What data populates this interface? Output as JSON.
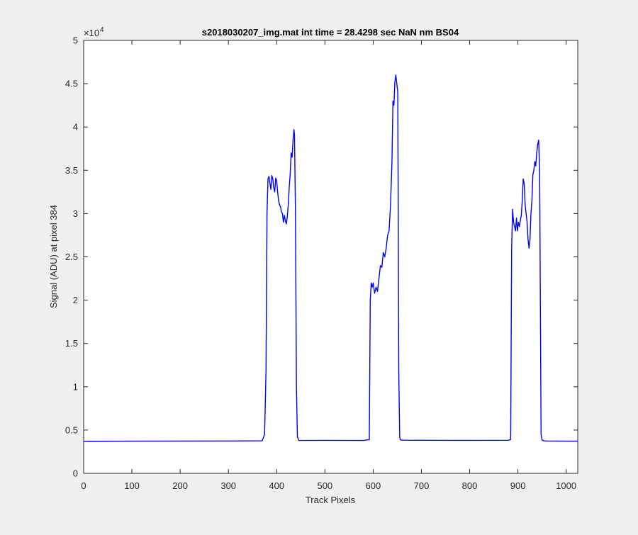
{
  "chart_data": {
    "type": "line",
    "title": "s2018030207_img.mat int time = 28.4298 sec  NaN nm BS04",
    "xlabel": "Track Pixels",
    "ylabel": "Signal (ADU) at pixel 384",
    "xlim": [
      0,
      1024
    ],
    "ylim": [
      0,
      50000
    ],
    "xticks": [
      "0",
      "100",
      "200",
      "300",
      "400",
      "500",
      "600",
      "700",
      "800",
      "900",
      "1000"
    ],
    "yticks": [
      "0",
      "0.5",
      "1",
      "1.5",
      "2",
      "2.5",
      "3",
      "3.5",
      "4",
      "4.5",
      "5"
    ],
    "y_exponent_base": "×10",
    "y_exponent_power": "4",
    "grid": false,
    "line_color": "#0000ff",
    "series": [
      {
        "x": [
          0,
          100,
          200,
          300,
          370,
          375,
          378,
          380,
          382,
          384,
          386,
          388,
          390,
          392,
          394,
          396,
          398,
          400,
          402,
          404,
          406,
          408,
          410,
          412,
          414,
          416,
          418,
          420,
          422,
          424,
          426,
          428,
          430,
          432,
          434,
          436,
          437,
          439,
          441,
          443,
          446,
          500,
          580,
          592,
          594,
          596,
          598,
          600,
          603,
          606,
          609,
          612,
          615,
          618,
          621,
          624,
          627,
          630,
          633,
          636,
          639,
          641,
          643,
          645,
          647,
          649,
          651,
          652,
          653,
          655,
          656,
          658,
          660,
          700,
          800,
          880,
          885,
          887,
          889,
          891,
          893,
          895,
          897,
          899,
          901,
          903,
          905,
          907,
          909,
          911,
          913,
          915,
          917,
          919,
          921,
          923,
          925,
          927,
          929,
          931,
          933,
          935,
          937,
          939,
          941,
          943,
          945,
          947,
          948,
          950,
          952,
          954,
          960,
          1000,
          1024
        ],
        "y": [
          3700,
          3720,
          3730,
          3740,
          3760,
          4500,
          12000,
          30000,
          34000,
          34300,
          33500,
          32800,
          34400,
          34000,
          33000,
          32500,
          34100,
          33800,
          32500,
          31500,
          31000,
          30800,
          30200,
          30000,
          29000,
          29800,
          29200,
          28800,
          29600,
          31000,
          33000,
          34500,
          37000,
          36500,
          38500,
          39700,
          39000,
          30000,
          10000,
          4200,
          3800,
          3810,
          3800,
          3900,
          20000,
          22000,
          21500,
          22000,
          20800,
          21500,
          21000,
          22500,
          24000,
          23800,
          25500,
          25000,
          26000,
          27500,
          28000,
          31000,
          36000,
          43000,
          42500,
          45200,
          46000,
          45000,
          44000,
          30000,
          12000,
          4300,
          3900,
          3850,
          3830,
          3820,
          3810,
          3820,
          3900,
          26000,
          30500,
          29000,
          28500,
          28000,
          29500,
          28000,
          29000,
          28500,
          29200,
          29800,
          31500,
          34000,
          33500,
          31000,
          30000,
          29000,
          27000,
          26000,
          27000,
          30000,
          31500,
          34500,
          35000,
          36000,
          35500,
          37000,
          38000,
          38500,
          35000,
          15000,
          4500,
          3850,
          3800,
          3760,
          3740,
          3720,
          3720
        ]
      }
    ]
  }
}
